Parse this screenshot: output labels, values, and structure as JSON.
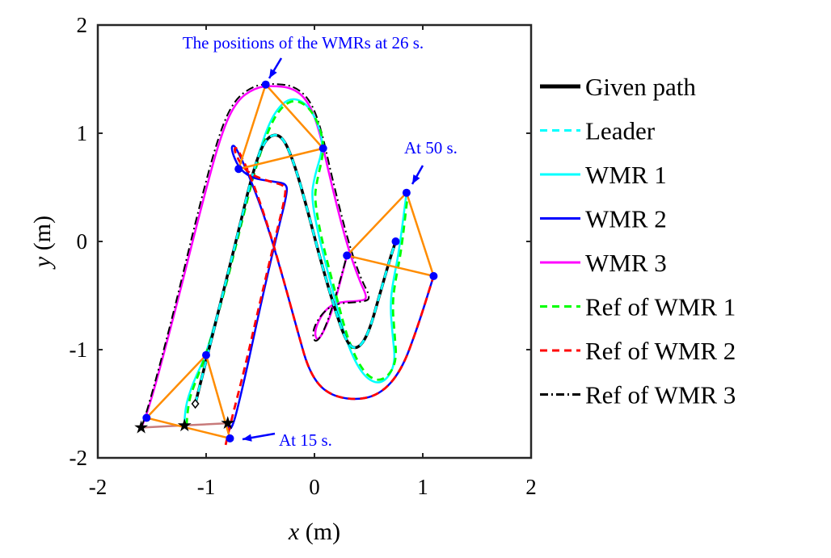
{
  "chart_data": {
    "type": "line",
    "xlabel_var": "x",
    "xlabel_unit": "(m)",
    "ylabel_var": "y",
    "ylabel_unit": "(m)",
    "xlim": [
      -2,
      2
    ],
    "ylim": [
      -2,
      2
    ],
    "xticks": [
      "-2",
      "-1",
      "0",
      "1",
      "2"
    ],
    "yticks": [
      "-2",
      "-1",
      "0",
      "1",
      "2"
    ],
    "grid": false,
    "legend_position": "outside-right",
    "series": [
      {
        "name": "Given path",
        "color": "#000000",
        "style": "solid-thick",
        "points": [
          [
            -1.1,
            -1.5
          ],
          [
            -1.0,
            -1.1
          ],
          [
            -0.85,
            -0.5
          ],
          [
            -0.7,
            0.1
          ],
          [
            -0.58,
            0.6
          ],
          [
            -0.48,
            0.9
          ],
          [
            -0.38,
            1.0
          ],
          [
            -0.28,
            0.95
          ],
          [
            -0.18,
            0.7
          ],
          [
            -0.08,
            0.35
          ],
          [
            0.05,
            -0.15
          ],
          [
            0.18,
            -0.6
          ],
          [
            0.3,
            -0.95
          ],
          [
            0.4,
            -1.0
          ],
          [
            0.5,
            -0.85
          ],
          [
            0.6,
            -0.5
          ],
          [
            0.7,
            -0.15
          ],
          [
            0.75,
            0
          ]
        ]
      },
      {
        "name": "Leader",
        "color": "#00ffff",
        "style": "dashed",
        "points": [
          [
            -1.1,
            -1.5
          ],
          [
            -1.0,
            -1.1
          ],
          [
            -0.85,
            -0.5
          ],
          [
            -0.7,
            0.1
          ],
          [
            -0.58,
            0.6
          ],
          [
            -0.48,
            0.9
          ],
          [
            -0.38,
            1.0
          ],
          [
            -0.28,
            0.95
          ],
          [
            -0.18,
            0.7
          ],
          [
            -0.08,
            0.35
          ],
          [
            0.05,
            -0.15
          ],
          [
            0.18,
            -0.6
          ],
          [
            0.3,
            -0.95
          ],
          [
            0.4,
            -1.0
          ],
          [
            0.5,
            -0.85
          ],
          [
            0.6,
            -0.5
          ],
          [
            0.7,
            -0.15
          ],
          [
            0.75,
            0
          ]
        ]
      },
      {
        "name": "WMR 1",
        "color": "#00ffff",
        "style": "solid",
        "points": [
          [
            -1.2,
            -1.7
          ],
          [
            -1.2,
            -1.55
          ],
          [
            -1.12,
            -1.3
          ],
          [
            -1.0,
            -1.05
          ],
          [
            -0.85,
            -0.5
          ],
          [
            -0.7,
            0.1
          ],
          [
            -0.55,
            0.7
          ],
          [
            -0.42,
            1.1
          ],
          [
            -0.3,
            1.28
          ],
          [
            -0.18,
            1.33
          ],
          [
            -0.05,
            1.25
          ],
          [
            0.05,
            1.05
          ],
          [
            0.08,
            0.86
          ],
          [
            0.0,
            0.6
          ],
          [
            -0.03,
            0.4
          ],
          [
            0.05,
            0.0
          ],
          [
            0.18,
            -0.5
          ],
          [
            0.3,
            -0.95
          ],
          [
            0.45,
            -1.25
          ],
          [
            0.62,
            -1.33
          ],
          [
            0.75,
            -1.15
          ],
          [
            0.72,
            -0.85
          ],
          [
            0.7,
            -0.6
          ],
          [
            0.72,
            -0.4
          ],
          [
            0.78,
            -0.1
          ],
          [
            0.85,
            0.45
          ]
        ]
      },
      {
        "name": "WMR 2",
        "color": "#0000ff",
        "style": "solid",
        "points": [
          [
            -0.8,
            -1.68
          ],
          [
            -0.78,
            -1.82
          ],
          [
            -0.65,
            -1.3
          ],
          [
            -0.5,
            -0.6
          ],
          [
            -0.35,
            0.05
          ],
          [
            -0.25,
            0.45
          ],
          [
            -0.26,
            0.53
          ],
          [
            -0.35,
            0.55
          ],
          [
            -0.5,
            0.57
          ],
          [
            -0.6,
            0.6
          ],
          [
            -0.7,
            0.68
          ],
          [
            -0.77,
            0.85
          ],
          [
            -0.75,
            0.9
          ],
          [
            -0.7,
            0.82
          ],
          [
            -0.6,
            0.6
          ],
          [
            -0.45,
            0.2
          ],
          [
            -0.3,
            -0.3
          ],
          [
            -0.15,
            -0.85
          ],
          [
            -0.05,
            -1.2
          ],
          [
            0.1,
            -1.4
          ],
          [
            0.35,
            -1.47
          ],
          [
            0.6,
            -1.42
          ],
          [
            0.8,
            -1.2
          ],
          [
            0.95,
            -0.8
          ],
          [
            1.1,
            -0.32
          ]
        ]
      },
      {
        "name": "WMR 3",
        "color": "#ff00ff",
        "style": "solid",
        "points": [
          [
            -1.6,
            -1.72
          ],
          [
            -1.55,
            -1.63
          ],
          [
            -1.3,
            -0.7
          ],
          [
            -1.05,
            0.3
          ],
          [
            -0.86,
            1.0
          ],
          [
            -0.72,
            1.3
          ],
          [
            -0.55,
            1.42
          ],
          [
            -0.4,
            1.44
          ],
          [
            -0.2,
            1.42
          ],
          [
            -0.06,
            1.3
          ],
          [
            0.04,
            1.05
          ],
          [
            0.14,
            0.6
          ],
          [
            0.29,
            0.0
          ],
          [
            0.41,
            -0.35
          ],
          [
            0.49,
            -0.52
          ],
          [
            0.44,
            -0.55
          ],
          [
            0.2,
            -0.56
          ],
          [
            0.08,
            -0.65
          ],
          [
            0.0,
            -0.82
          ],
          [
            0.02,
            -0.92
          ],
          [
            0.08,
            -0.85
          ],
          [
            0.18,
            -0.6
          ],
          [
            0.3,
            -0.13
          ]
        ]
      },
      {
        "name": "Ref of WMR 1",
        "color": "#00ff00",
        "style": "dashed",
        "points": [
          [
            -1.18,
            -1.7
          ],
          [
            -1.17,
            -1.5
          ],
          [
            -1.1,
            -1.3
          ],
          [
            -1.0,
            -1.05
          ],
          [
            -0.84,
            -0.5
          ],
          [
            -0.69,
            0.1
          ],
          [
            -0.54,
            0.7
          ],
          [
            -0.4,
            1.1
          ],
          [
            -0.28,
            1.27
          ],
          [
            -0.16,
            1.31
          ],
          [
            -0.03,
            1.22
          ],
          [
            0.06,
            1.03
          ],
          [
            0.09,
            0.84
          ],
          [
            0.02,
            0.55
          ],
          [
            0.0,
            0.38
          ],
          [
            0.07,
            0.0
          ],
          [
            0.2,
            -0.5
          ],
          [
            0.32,
            -0.95
          ],
          [
            0.47,
            -1.24
          ],
          [
            0.63,
            -1.3
          ],
          [
            0.76,
            -1.13
          ],
          [
            0.74,
            -0.85
          ],
          [
            0.72,
            -0.6
          ],
          [
            0.74,
            -0.4
          ],
          [
            0.8,
            -0.1
          ],
          [
            0.86,
            0.42
          ]
        ]
      },
      {
        "name": "Ref of WMR 2",
        "color": "#ff0000",
        "style": "dashed",
        "points": [
          [
            -0.82,
            -1.88
          ],
          [
            -0.78,
            -1.7
          ],
          [
            -0.65,
            -1.2
          ],
          [
            -0.5,
            -0.55
          ],
          [
            -0.37,
            0.0
          ],
          [
            -0.26,
            0.45
          ],
          [
            -0.28,
            0.52
          ],
          [
            -0.4,
            0.55
          ],
          [
            -0.55,
            0.6
          ],
          [
            -0.66,
            0.68
          ],
          [
            -0.74,
            0.83
          ],
          [
            -0.73,
            0.88
          ],
          [
            -0.68,
            0.8
          ],
          [
            -0.58,
            0.58
          ],
          [
            -0.44,
            0.18
          ],
          [
            -0.3,
            -0.3
          ],
          [
            -0.15,
            -0.85
          ],
          [
            -0.05,
            -1.2
          ],
          [
            0.1,
            -1.4
          ],
          [
            0.35,
            -1.47
          ],
          [
            0.6,
            -1.42
          ],
          [
            0.8,
            -1.2
          ],
          [
            0.95,
            -0.8
          ],
          [
            1.1,
            -0.32
          ]
        ]
      },
      {
        "name": "Ref of WMR 3",
        "color": "#000000",
        "style": "dashdot",
        "points": [
          [
            -1.6,
            -1.72
          ],
          [
            -1.56,
            -1.63
          ],
          [
            -1.31,
            -0.7
          ],
          [
            -1.07,
            0.3
          ],
          [
            -0.88,
            1.0
          ],
          [
            -0.74,
            1.31
          ],
          [
            -0.56,
            1.44
          ],
          [
            -0.4,
            1.46
          ],
          [
            -0.19,
            1.44
          ],
          [
            -0.04,
            1.31
          ],
          [
            0.06,
            1.05
          ],
          [
            0.16,
            0.6
          ],
          [
            0.31,
            0.0
          ],
          [
            0.43,
            -0.35
          ],
          [
            0.52,
            -0.52
          ],
          [
            0.46,
            -0.56
          ],
          [
            0.2,
            -0.57
          ],
          [
            0.07,
            -0.66
          ],
          [
            -0.02,
            -0.82
          ],
          [
            0.0,
            -0.94
          ],
          [
            0.07,
            -0.87
          ],
          [
            0.17,
            -0.6
          ],
          [
            0.3,
            -0.13
          ]
        ]
      }
    ],
    "start_markers": [
      [
        -1.6,
        -1.72
      ],
      [
        -1.2,
        -1.7
      ],
      [
        -0.8,
        -1.68
      ]
    ],
    "start_link_color": "#c87b7b",
    "formation_color": "#ff8c00",
    "formations": [
      {
        "time": "15 s",
        "vertices": [
          [
            -1.55,
            -1.63
          ],
          [
            -1.0,
            -1.05
          ],
          [
            -0.78,
            -1.82
          ]
        ]
      },
      {
        "time": "26 s",
        "vertices": [
          [
            -0.45,
            1.45
          ],
          [
            0.08,
            0.86
          ],
          [
            -0.7,
            0.67
          ]
        ]
      },
      {
        "time": "50 s",
        "vertices": [
          [
            0.85,
            0.45
          ],
          [
            0.3,
            -0.13
          ],
          [
            1.1,
            -0.32
          ]
        ]
      }
    ],
    "leader_marker_50s": [
      0.75,
      0
    ],
    "annotations": [
      {
        "text": "The positions of the WMRs at 26 s.",
        "color": "#0000ff"
      },
      {
        "text": "At 50 s.",
        "color": "#0000ff"
      },
      {
        "text": "At 15 s.",
        "color": "#0000ff"
      }
    ]
  }
}
